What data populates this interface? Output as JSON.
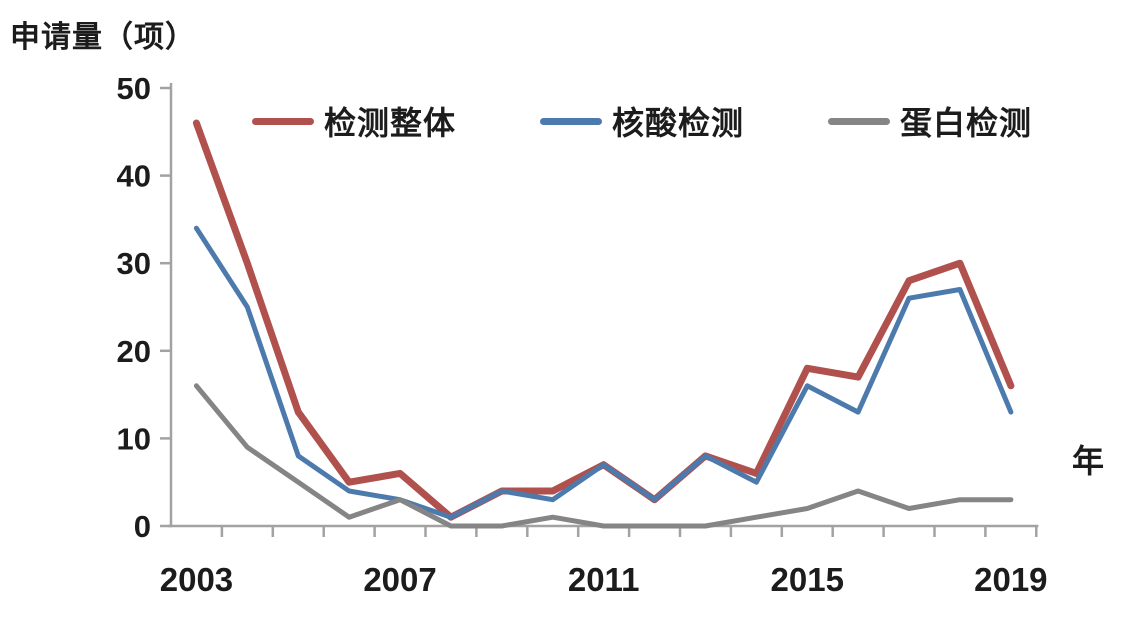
{
  "chart_data": {
    "type": "line",
    "ylabel": "申请量（项）",
    "xlabel": "年",
    "categories": [
      "2003",
      "2004",
      "2005",
      "2006",
      "2007",
      "2008",
      "2009",
      "2010",
      "2011",
      "2012",
      "2013",
      "2014",
      "2015",
      "2016",
      "2017",
      "2018",
      "2019"
    ],
    "x_shown_tick_labels": [
      "2003",
      "2007",
      "2011",
      "2015",
      "2019"
    ],
    "x_shown_label_indices": [
      0,
      4,
      8,
      12,
      16
    ],
    "yticks": [
      0,
      10,
      20,
      30,
      40,
      50
    ],
    "ylim": [
      0,
      50
    ],
    "grid": false,
    "legend_position": "top-inside",
    "series": [
      {
        "key": "overall-detection",
        "name": "检测整体",
        "color": "#b0514e",
        "stroke_width": 7,
        "values": [
          46,
          30,
          13,
          5,
          6,
          1,
          4,
          4,
          7,
          3,
          8,
          6,
          18,
          17,
          28,
          30,
          16
        ]
      },
      {
        "key": "nucleic-acid-detection",
        "name": "核酸检测",
        "color": "#4d7aad",
        "stroke_width": 5,
        "values": [
          34,
          25,
          8,
          4,
          3,
          1,
          4,
          3,
          7,
          3,
          8,
          5,
          16,
          13,
          26,
          27,
          13
        ]
      },
      {
        "key": "protein-detection",
        "name": "蛋白检测",
        "color": "#858585",
        "stroke_width": 5,
        "values": [
          16,
          9,
          5,
          1,
          3,
          0,
          0,
          1,
          0,
          0,
          0,
          1,
          2,
          4,
          2,
          3,
          3
        ]
      }
    ]
  },
  "colors": {
    "axis": "#a2a2a2",
    "text": "#1c1c1c",
    "background": "#ffffff"
  }
}
